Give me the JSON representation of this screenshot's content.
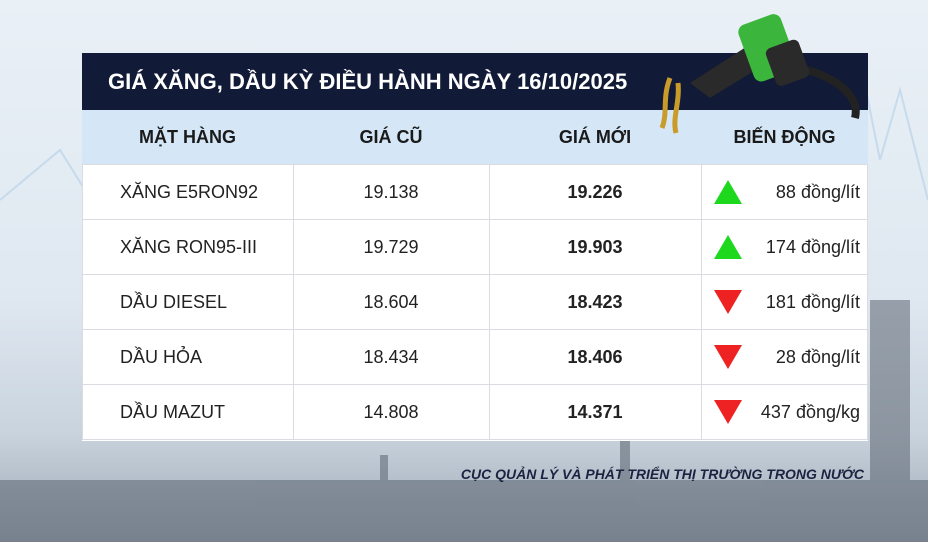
{
  "header": {
    "title": "GIÁ XĂNG, DẦU KỲ ĐIỀU HÀNH NGÀY 16/10/2025"
  },
  "table": {
    "columns": [
      "MẶT HÀNG",
      "GIÁ CŨ",
      "GIÁ MỚI",
      "BIẾN ĐỘNG"
    ],
    "rows": [
      {
        "item": "XĂNG E5RON92",
        "old": "19.138",
        "new": "19.226",
        "change": "88 đồng/lít",
        "direction": "up"
      },
      {
        "item": "XĂNG RON95-III",
        "old": "19.729",
        "new": "19.903",
        "change": "174 đồng/lít",
        "direction": "up"
      },
      {
        "item": "DẦU DIESEL",
        "old": "18.604",
        "new": "18.423",
        "change": "181 đồng/lít",
        "direction": "down"
      },
      {
        "item": "DẦU HỎA",
        "old": "18.434",
        "new": "18.406",
        "change": "28 đồng/lít",
        "direction": "down"
      },
      {
        "item": "DẦU MAZUT",
        "old": "14.808",
        "new": "14.371",
        "change": "437 đồng/kg",
        "direction": "down"
      }
    ]
  },
  "footer": {
    "source": "CỤC QUẢN LÝ VÀ PHÁT TRIỂN THỊ TRƯỜNG TRONG NƯỚC"
  }
}
